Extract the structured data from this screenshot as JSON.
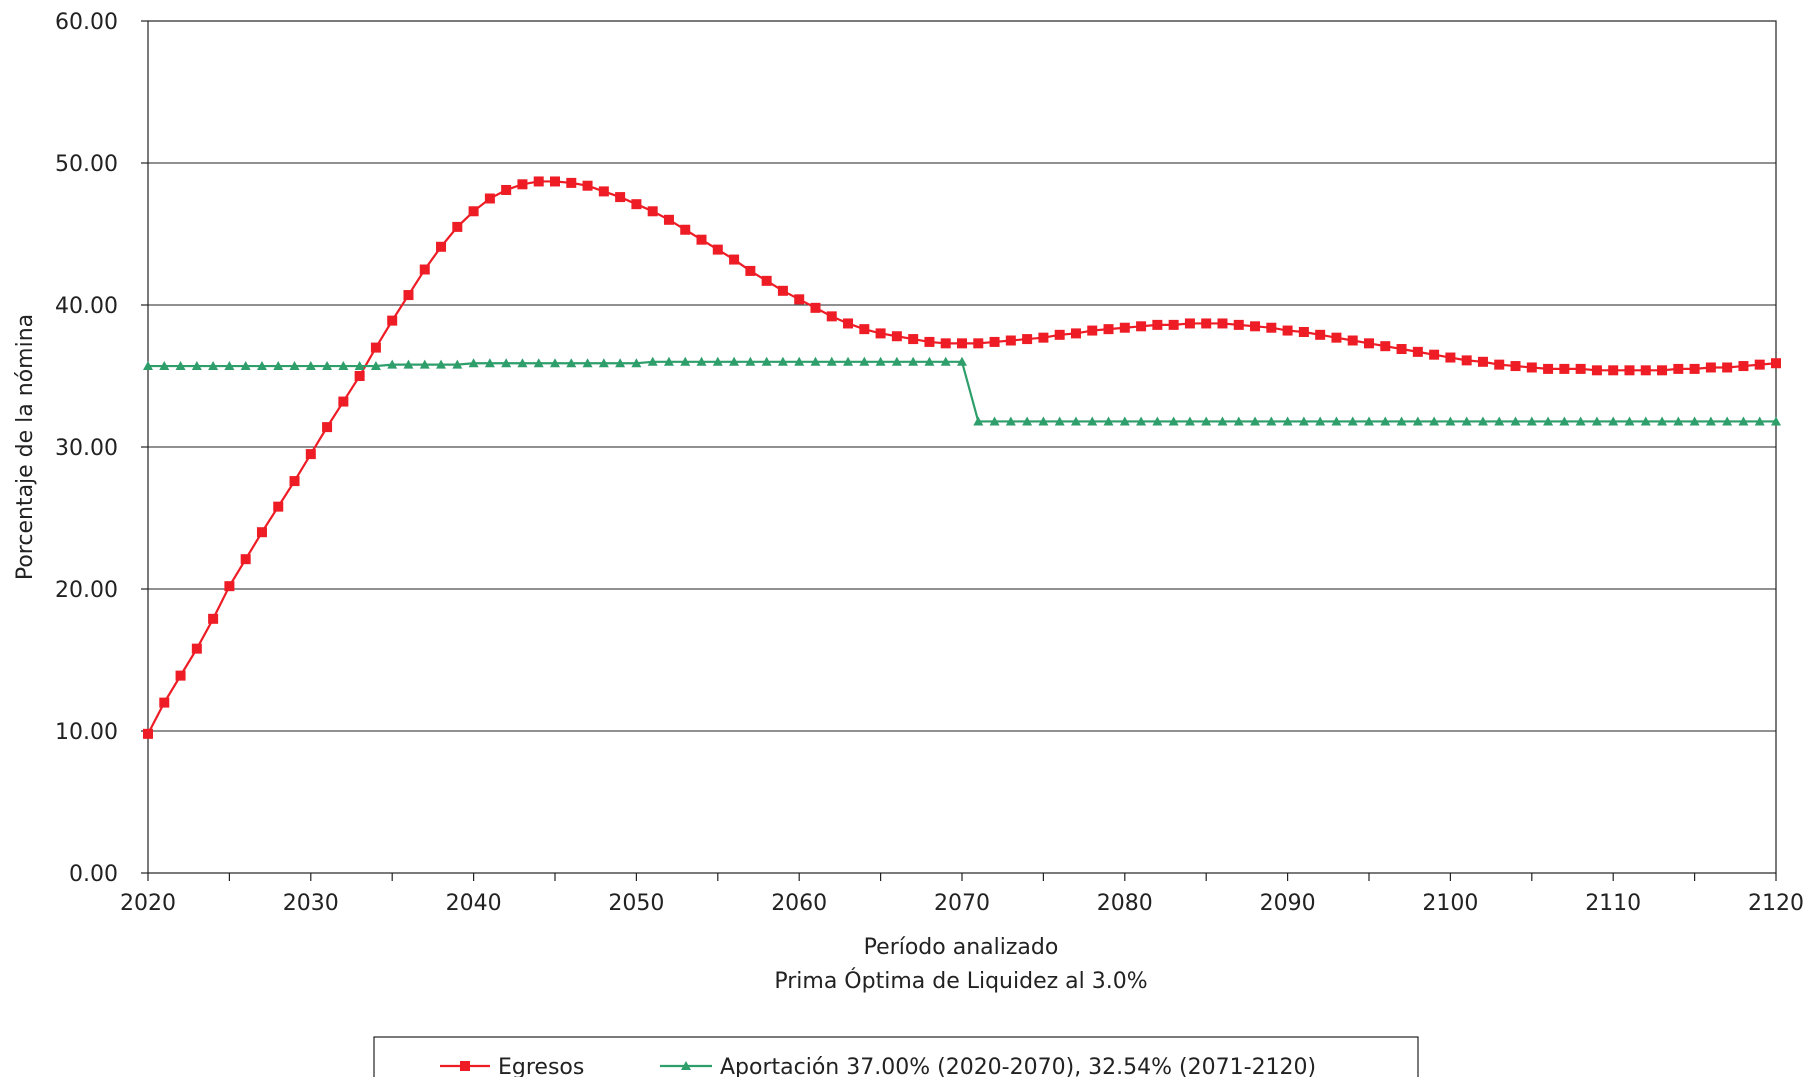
{
  "chart_data": {
    "type": "line",
    "xlabel": "Período analizado",
    "subtitle": "Prima Óptima de Liquidez al 3.0%",
    "ylabel": "Porcentaje de la nómina",
    "xlim": [
      2020,
      2120
    ],
    "ylim": [
      0,
      60
    ],
    "x_ticks": [
      "2020",
      "2030",
      "2040",
      "2050",
      "2060",
      "2070",
      "2080",
      "2090",
      "2100",
      "2110",
      "2120"
    ],
    "y_ticks": [
      "0.00",
      "10.00",
      "20.00",
      "30.00",
      "40.00",
      "50.00",
      "60.00"
    ],
    "grid": "horizontal",
    "legend_position": "bottom",
    "series": [
      {
        "name": "Egresos",
        "color": "#ee1c25",
        "marker": "square",
        "x_start": 2020,
        "values": [
          9.8,
          12.0,
          13.9,
          15.8,
          17.9,
          20.2,
          22.1,
          24.0,
          25.8,
          27.6,
          29.5,
          31.4,
          33.2,
          35.0,
          37.0,
          38.9,
          40.7,
          42.5,
          44.1,
          45.5,
          46.6,
          47.5,
          48.1,
          48.5,
          48.7,
          48.7,
          48.6,
          48.4,
          48.0,
          47.6,
          47.1,
          46.6,
          46.0,
          45.3,
          44.6,
          43.9,
          43.2,
          42.4,
          41.7,
          41.0,
          40.4,
          39.8,
          39.2,
          38.7,
          38.3,
          38.0,
          37.8,
          37.6,
          37.4,
          37.3,
          37.3,
          37.3,
          37.4,
          37.5,
          37.6,
          37.7,
          37.9,
          38.0,
          38.2,
          38.3,
          38.4,
          38.5,
          38.6,
          38.6,
          38.7,
          38.7,
          38.7,
          38.6,
          38.5,
          38.4,
          38.2,
          38.1,
          37.9,
          37.7,
          37.5,
          37.3,
          37.1,
          36.9,
          36.7,
          36.5,
          36.3,
          36.1,
          36.0,
          35.8,
          35.7,
          35.6,
          35.5,
          35.5,
          35.5,
          35.4,
          35.4,
          35.4,
          35.4,
          35.4,
          35.5,
          35.5,
          35.6,
          35.6,
          35.7,
          35.8,
          35.9
        ]
      },
      {
        "name": "Aportación 37.00% (2020-2070), 32.54% (2071-2120)",
        "color": "#2e9e6b",
        "marker": "triangle",
        "x_start": 2020,
        "values": [
          35.7,
          35.7,
          35.7,
          35.7,
          35.7,
          35.7,
          35.7,
          35.7,
          35.7,
          35.7,
          35.7,
          35.7,
          35.7,
          35.7,
          35.7,
          35.8,
          35.8,
          35.8,
          35.8,
          35.8,
          35.9,
          35.9,
          35.9,
          35.9,
          35.9,
          35.9,
          35.9,
          35.9,
          35.9,
          35.9,
          35.9,
          36.0,
          36.0,
          36.0,
          36.0,
          36.0,
          36.0,
          36.0,
          36.0,
          36.0,
          36.0,
          36.0,
          36.0,
          36.0,
          36.0,
          36.0,
          36.0,
          36.0,
          36.0,
          36.0,
          36.0,
          31.8,
          31.8,
          31.8,
          31.8,
          31.8,
          31.8,
          31.8,
          31.8,
          31.8,
          31.8,
          31.8,
          31.8,
          31.8,
          31.8,
          31.8,
          31.8,
          31.8,
          31.8,
          31.8,
          31.8,
          31.8,
          31.8,
          31.8,
          31.8,
          31.8,
          31.8,
          31.8,
          31.8,
          31.8,
          31.8,
          31.8,
          31.8,
          31.8,
          31.8,
          31.8,
          31.8,
          31.8,
          31.8,
          31.8,
          31.8,
          31.8,
          31.8,
          31.8,
          31.8,
          31.8,
          31.8,
          31.8,
          31.8,
          31.8,
          31.8
        ]
      }
    ]
  }
}
